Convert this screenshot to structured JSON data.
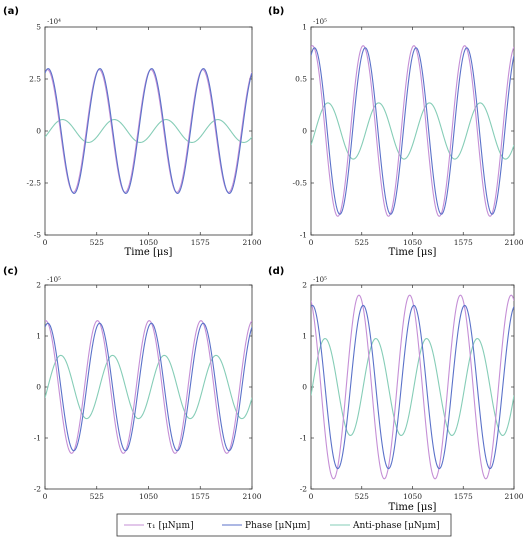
{
  "legend": {
    "entries": [
      {
        "label": "τ₁ [μNμm]",
        "color": "#c58fd6"
      },
      {
        "label": "Phase [μNμm]",
        "color": "#5b72c9"
      },
      {
        "label": "Anti-phase [μNμm]",
        "color": "#86cdb7"
      }
    ]
  },
  "chart_data": [
    {
      "type": "line",
      "panel_label": "(a)",
      "xlabel": "Time [μs]",
      "xlim": [
        0,
        2100
      ],
      "xticks": [
        0,
        525,
        1050,
        1575,
        2100
      ],
      "ylim": [
        -5,
        5
      ],
      "yticks": [
        -5,
        -2.5,
        0,
        2.5,
        5
      ],
      "ytick_labels": [
        "-5",
        "-2.5",
        "0",
        "2.5",
        "5"
      ],
      "y_multiplier": "·10⁴",
      "series": [
        {
          "name": "τ₁ [μNμm]",
          "color": "#c58fd6",
          "wave": {
            "amplitude": 2.95,
            "period": 525,
            "phase_deg": 17
          }
        },
        {
          "name": "Phase [μNμm]",
          "color": "#5b72c9",
          "wave": {
            "amplitude": 3.0,
            "period": 525,
            "phase_deg": 22
          }
        },
        {
          "name": "Anti-phase [μNμm]",
          "color": "#86cdb7",
          "wave": {
            "amplitude": 0.55,
            "period": 525,
            "phase_deg": 122
          }
        }
      ]
    },
    {
      "type": "line",
      "panel_label": "(b)",
      "xlabel": "Time [μs]",
      "xlim": [
        0,
        2100
      ],
      "xticks": [
        0,
        525,
        1050,
        1575,
        2100
      ],
      "ylim": [
        -1,
        1
      ],
      "yticks": [
        -1,
        -0.5,
        0,
        0.5,
        1
      ],
      "ytick_labels": [
        "-1",
        "-0.5",
        "0",
        "0.5",
        "1"
      ],
      "y_multiplier": "·10⁵",
      "series": [
        {
          "name": "τ₁ [μNμm]",
          "color": "#c58fd6",
          "wave": {
            "amplitude": 0.82,
            "period": 525,
            "phase_deg": 10
          }
        },
        {
          "name": "Phase [μNμm]",
          "color": "#5b72c9",
          "wave": {
            "amplitude": 0.8,
            "period": 525,
            "phase_deg": 25
          }
        },
        {
          "name": "Anti-phase [μNμm]",
          "color": "#86cdb7",
          "wave": {
            "amplitude": 0.27,
            "period": 525,
            "phase_deg": 120
          }
        }
      ]
    },
    {
      "type": "line",
      "panel_label": "(c)",
      "xlabel": "",
      "xlim": [
        0,
        2100
      ],
      "xticks": [
        0,
        525,
        1050,
        1575,
        2100
      ],
      "ylim": [
        -2,
        2
      ],
      "yticks": [
        -2,
        -1,
        0,
        1,
        2
      ],
      "ytick_labels": [
        "-2",
        "-1",
        "0",
        "1",
        "2"
      ],
      "y_multiplier": "·10⁵",
      "series": [
        {
          "name": "τ₁ [μNμm]",
          "color": "#c58fd6",
          "wave": {
            "amplitude": 1.3,
            "period": 525,
            "phase_deg": 5
          }
        },
        {
          "name": "Phase [μNμm]",
          "color": "#5b72c9",
          "wave": {
            "amplitude": 1.25,
            "period": 525,
            "phase_deg": 20
          }
        },
        {
          "name": "Anti-phase [μNμm]",
          "color": "#86cdb7",
          "wave": {
            "amplitude": 0.62,
            "period": 525,
            "phase_deg": 110
          }
        }
      ]
    },
    {
      "type": "line",
      "panel_label": "(d)",
      "xlabel": "Time [μs]",
      "xlim": [
        0,
        2100
      ],
      "xticks": [
        0,
        525,
        1050,
        1575,
        2100
      ],
      "ylim": [
        -2,
        2
      ],
      "yticks": [
        -2,
        -1,
        0,
        1,
        2
      ],
      "ytick_labels": [
        "-2",
        "-1",
        "0",
        "1",
        "2"
      ],
      "y_multiplier": "·10⁵",
      "series": [
        {
          "name": "τ₁ [μNμm]",
          "color": "#c58fd6",
          "wave": {
            "amplitude": 1.8,
            "period": 525,
            "phase_deg": 340
          }
        },
        {
          "name": "Phase [μNμm]",
          "color": "#5b72c9",
          "wave": {
            "amplitude": 1.6,
            "period": 525,
            "phase_deg": 10
          }
        },
        {
          "name": "Anti-phase [μNμm]",
          "color": "#86cdb7",
          "wave": {
            "amplitude": 0.95,
            "period": 525,
            "phase_deg": 100
          }
        }
      ]
    }
  ]
}
